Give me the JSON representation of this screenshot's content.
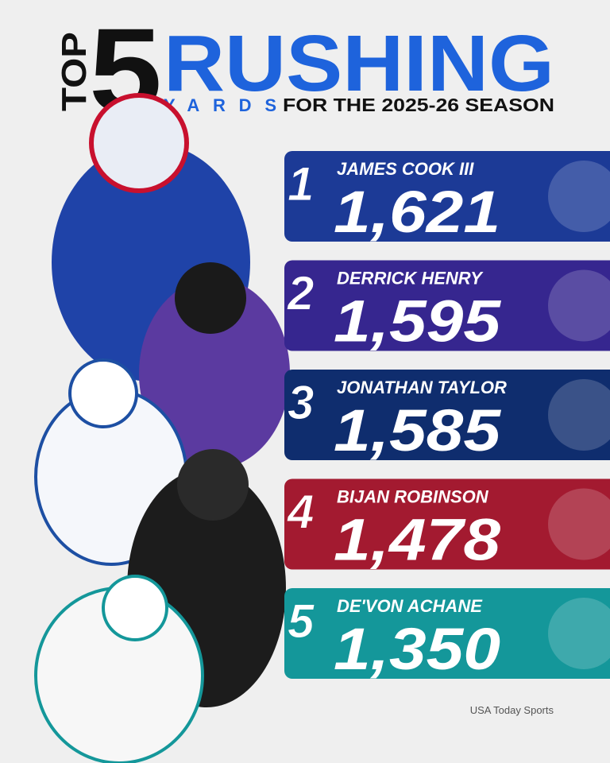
{
  "header": {
    "top": "TOP",
    "number": "5",
    "title": "RUSHING",
    "subtitle_accent": "YARDS",
    "subtitle": "FOR THE 2025-26 SEASON"
  },
  "entries": [
    {
      "rank": "1",
      "name": "JAMES COOK III",
      "yards": "1,621",
      "color": "#1c3a96"
    },
    {
      "rank": "2",
      "name": "DERRICK HENRY",
      "yards": "1,595",
      "color": "#36268f"
    },
    {
      "rank": "3",
      "name": "JONATHAN TAYLOR",
      "yards": "1,585",
      "color": "#0f2d6e"
    },
    {
      "rank": "4",
      "name": "BIJAN ROBINSON",
      "yards": "1,478",
      "color": "#a31a30"
    },
    {
      "rank": "5",
      "name": "DE'VON ACHANE",
      "yards": "1,350",
      "color": "#14979a"
    }
  ],
  "credit": "USA Today Sports"
}
